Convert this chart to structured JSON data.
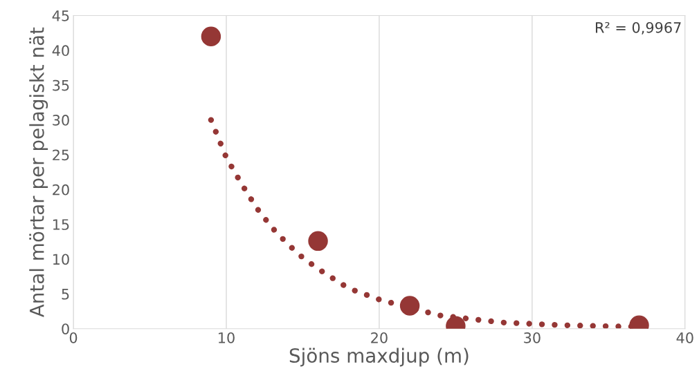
{
  "chart_data": {
    "type": "scatter",
    "xlabel": "Sjöns maxdjup (m)",
    "ylabel": "Antal mörtar per pelagiskt nät",
    "xlim": [
      0,
      40
    ],
    "xticks": [
      0,
      10,
      20,
      30,
      40
    ],
    "ylim": [
      0,
      45
    ],
    "yticks": [
      0,
      5,
      10,
      15,
      20,
      25,
      30,
      35,
      40,
      45
    ],
    "grid": "x",
    "x": [
      9,
      16,
      22,
      25,
      37
    ],
    "series": [
      {
        "color": "#953735",
        "marker": "circle",
        "values": [
          42,
          12.6,
          3.3,
          0.4,
          0.5
        ]
      },
      {
        "type": "line",
        "color": "#953735",
        "line_style": "dotted",
        "marker": "none",
        "x": [
          9,
          10,
          11,
          12,
          13,
          14,
          15,
          16,
          18,
          20,
          22,
          24,
          26,
          28,
          30,
          32,
          34,
          36,
          37
        ],
        "values": [
          30,
          24.6,
          20.8,
          17.3,
          14.5,
          12.2,
          10.2,
          8.6,
          5.8,
          4.2,
          3.0,
          1.9,
          1.4,
          0.9,
          0.7,
          0.5,
          0.4,
          0.3,
          0.3
        ]
      }
    ],
    "annotations": [
      "R² = 0,9967"
    ]
  }
}
